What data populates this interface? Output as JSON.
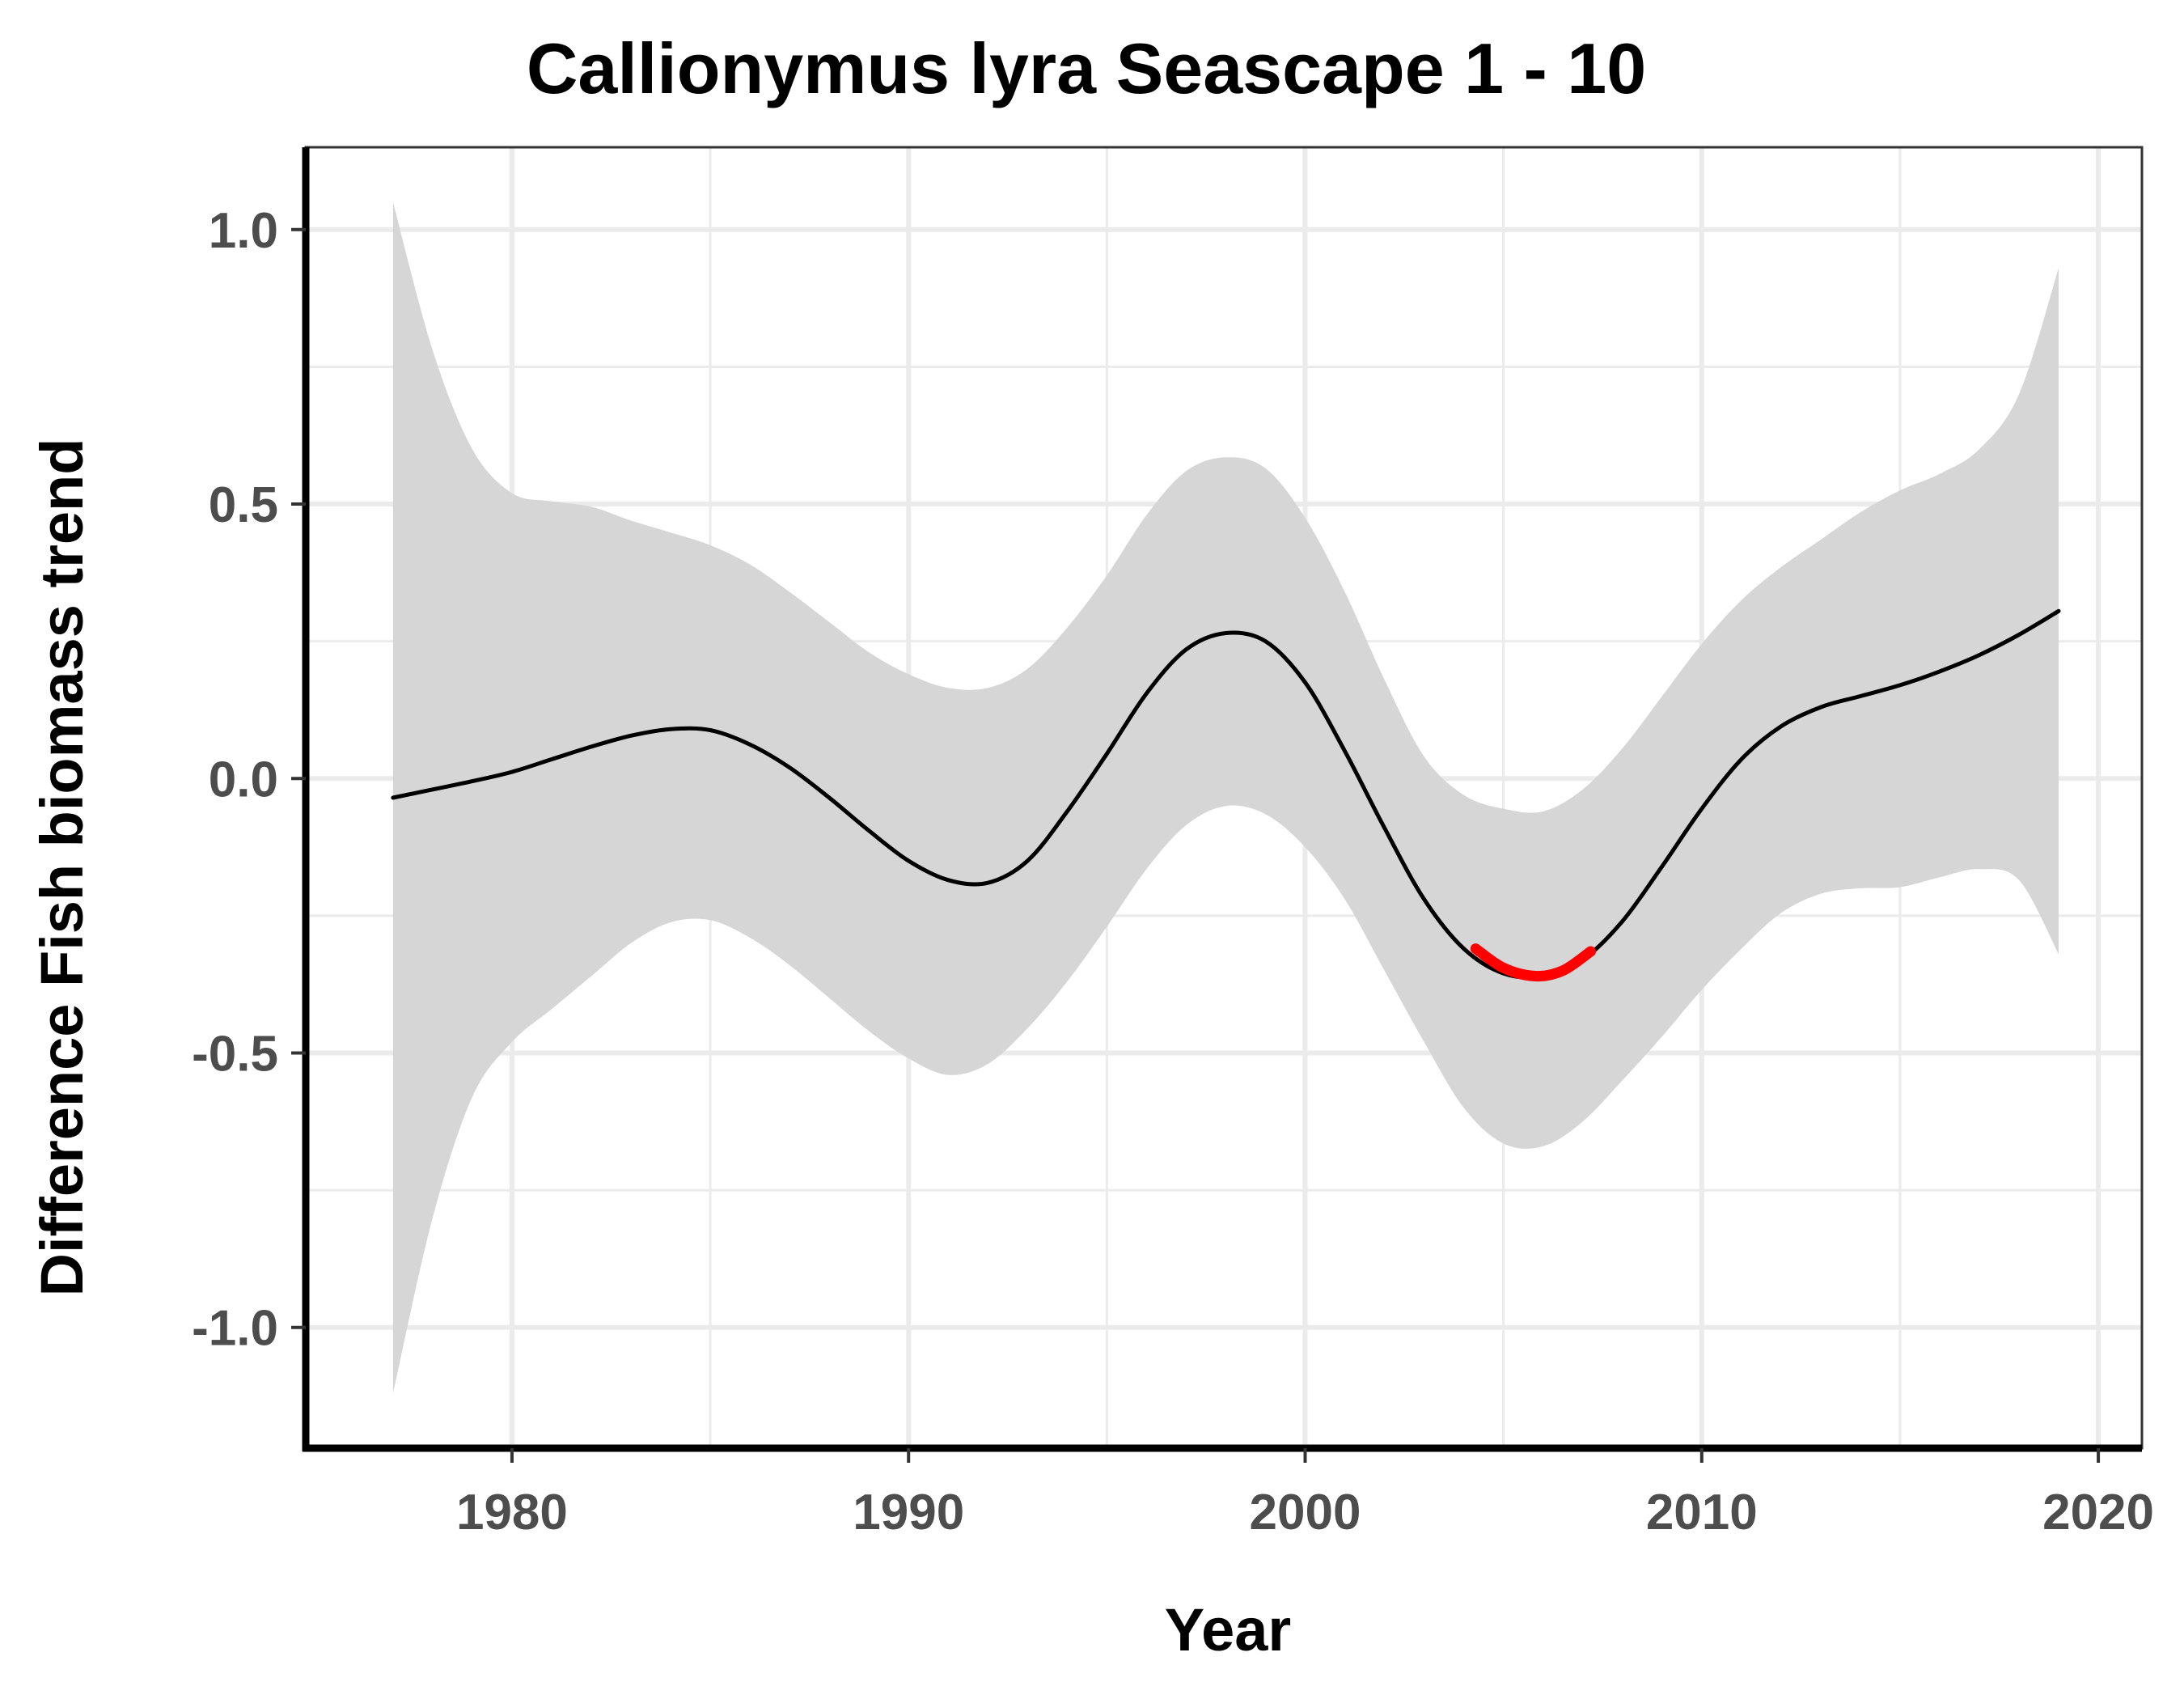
{
  "chart_data": {
    "type": "line",
    "title": "Callionymus lyra Seascape 1 - 10",
    "xlabel": "Year",
    "ylabel": "Difference Fish biomass trend",
    "xlim": [
      1974.8,
      2021.1
    ],
    "ylim": [
      -1.22,
      1.15
    ],
    "x_ticks": [
      1980,
      1990,
      2000,
      2010,
      2020
    ],
    "x_tick_labels": [
      "1980",
      "1990",
      "2000",
      "2010",
      "2020"
    ],
    "y_ticks": [
      1.0,
      0.5,
      0.0,
      -0.5,
      -1.0
    ],
    "y_tick_labels": [
      "1.0",
      "0.5",
      "0.0",
      "-0.5",
      "-1.0"
    ],
    "x_minor_gridlines": [
      1985,
      1995,
      2005,
      2015
    ],
    "y_minor_gridlines": [
      0.75,
      0.25,
      -0.25,
      -0.75
    ],
    "grid": true,
    "colors": {
      "line": "#000000",
      "highlight": "#ff0000",
      "ribbon": "#d6d6d6",
      "grid": "#ebebeb",
      "axis": "#000000"
    },
    "series": [
      {
        "x": [
          1977,
          1978,
          1979,
          1980,
          1981,
          1982,
          1983,
          1984,
          1985,
          1986,
          1987,
          1988,
          1989,
          1990,
          1991,
          1992,
          1993,
          1994,
          1995,
          1996,
          1997,
          1998,
          1999,
          2000,
          2001,
          2002,
          2003,
          2004,
          2005,
          2006,
          2007,
          2008,
          2009,
          2010,
          2011,
          2012,
          2013,
          2014,
          2015,
          2016,
          2017,
          2018,
          2019
        ],
        "y": [
          -0.035,
          -0.02,
          -0.005,
          0.012,
          0.035,
          0.058,
          0.078,
          0.09,
          0.088,
          0.062,
          0.02,
          -0.035,
          -0.095,
          -0.15,
          -0.185,
          -0.19,
          -0.15,
          -0.06,
          0.045,
          0.155,
          0.235,
          0.265,
          0.25,
          0.175,
          0.05,
          -0.09,
          -0.22,
          -0.31,
          -0.355,
          -0.36,
          -0.33,
          -0.26,
          -0.16,
          -0.055,
          0.035,
          0.095,
          0.13,
          0.15,
          0.17,
          0.195,
          0.225,
          0.262,
          0.305
        ],
        "lower": [
          -1.12,
          -0.8,
          -0.58,
          -0.48,
          -0.42,
          -0.36,
          -0.3,
          -0.262,
          -0.258,
          -0.29,
          -0.34,
          -0.4,
          -0.46,
          -0.51,
          -0.54,
          -0.52,
          -0.455,
          -0.37,
          -0.27,
          -0.165,
          -0.085,
          -0.05,
          -0.065,
          -0.125,
          -0.22,
          -0.35,
          -0.48,
          -0.6,
          -0.665,
          -0.67,
          -0.625,
          -0.55,
          -0.47,
          -0.385,
          -0.31,
          -0.245,
          -0.21,
          -0.2,
          -0.198,
          -0.18,
          -0.165,
          -0.185,
          -0.32
        ],
        "upper": [
          1.05,
          0.78,
          0.6,
          0.52,
          0.505,
          0.495,
          0.47,
          0.448,
          0.425,
          0.39,
          0.34,
          0.285,
          0.23,
          0.19,
          0.165,
          0.165,
          0.2,
          0.275,
          0.37,
          0.48,
          0.56,
          0.585,
          0.565,
          0.475,
          0.34,
          0.18,
          0.04,
          -0.03,
          -0.055,
          -0.06,
          -0.02,
          0.055,
          0.15,
          0.245,
          0.325,
          0.385,
          0.435,
          0.485,
          0.525,
          0.555,
          0.6,
          0.7,
          0.93
        ]
      }
    ],
    "highlight_segment": {
      "x": [
        2004.3,
        2005,
        2005.8,
        2006.5,
        2007.2
      ],
      "y": [
        -0.31,
        -0.345,
        -0.36,
        -0.35,
        -0.315
      ]
    }
  }
}
